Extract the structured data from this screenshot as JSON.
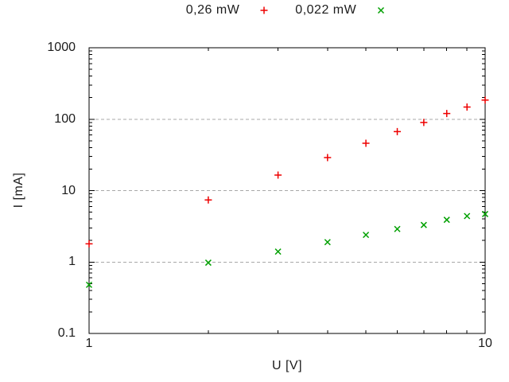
{
  "figure": {
    "background": "#ffffff",
    "text_color": "#1c1c1c",
    "frame_color": "#000000"
  },
  "chart_data": {
    "type": "scatter",
    "title": "",
    "xlabel": "U [V]",
    "ylabel": "I [mA]",
    "x_scale": "log",
    "y_scale": "log",
    "xlim": [
      1,
      10
    ],
    "ylim": [
      0.1,
      1000
    ],
    "x_tick_labels": [
      {
        "value": 1,
        "label": "1"
      },
      {
        "value": 10,
        "label": "10"
      }
    ],
    "x_minor_ticks": [
      2,
      3,
      4,
      5,
      6,
      7,
      8,
      9
    ],
    "y_tick_labels": [
      {
        "value": 0.1,
        "label": "0.1"
      },
      {
        "value": 1,
        "label": "1"
      },
      {
        "value": 10,
        "label": "10"
      },
      {
        "value": 100,
        "label": "100"
      },
      {
        "value": 1000,
        "label": "1000"
      }
    ],
    "y_gridlines": [
      1,
      10,
      100
    ],
    "grid_color": "#a8a8a8",
    "grid_style": "dashed",
    "legend_position": "top-center-outside",
    "series": [
      {
        "name": "0,26 mW",
        "marker": "plus",
        "color": "#ee0000",
        "x": [
          1,
          2,
          3,
          4,
          5,
          6,
          7,
          8,
          9,
          10
        ],
        "y": [
          1.8,
          7.4,
          16.5,
          29,
          46,
          67,
          90,
          120,
          148,
          185
        ]
      },
      {
        "name": "0,022 mW",
        "marker": "x",
        "color": "#00a000",
        "x": [
          1,
          2,
          3,
          4,
          5,
          6,
          7,
          8,
          9,
          10
        ],
        "y": [
          0.48,
          0.98,
          1.4,
          1.9,
          2.4,
          2.9,
          3.3,
          3.9,
          4.4,
          4.7
        ]
      }
    ]
  }
}
